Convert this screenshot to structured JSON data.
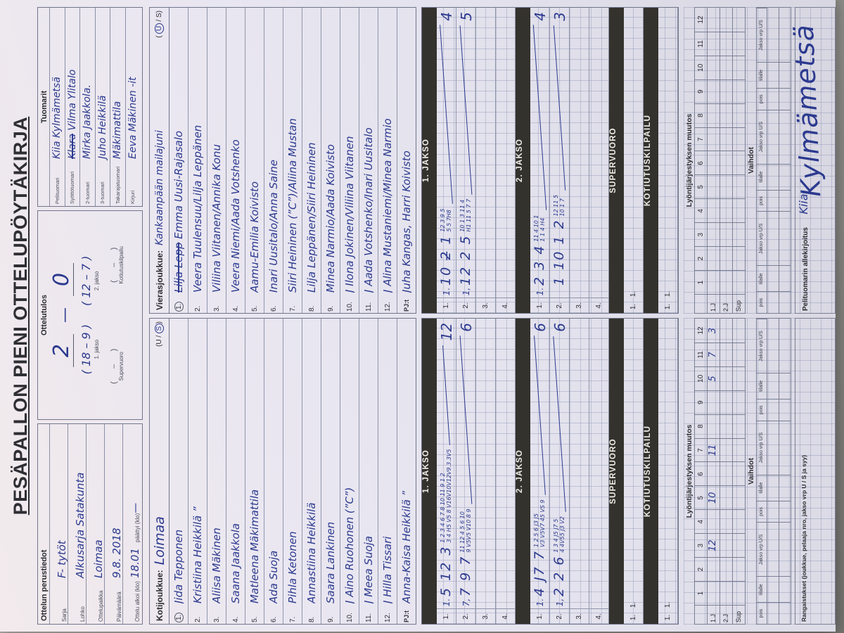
{
  "colors": {
    "table_bg": "#a8a6a2",
    "paper": "#e9e7f1",
    "ink": "#2c3a8f",
    "print": "#2b2b31",
    "bar_bg": "#34322d"
  },
  "title": "PESÄPALLON PIENI OTTELUPÖYTÄKIRJA",
  "header": {
    "perustiedot": {
      "label": "Ottelun perustiedot",
      "fields": [
        {
          "label": "Sarja",
          "value": "F- tytöt"
        },
        {
          "label": "Lohko",
          "value": "Alkusarja Satakunta"
        },
        {
          "label": "Ottelupaikka",
          "value": "Loimaa"
        },
        {
          "label": "Päivämäärä",
          "value": "9.8. 2018"
        },
        {
          "label": "Ottelu alkoi (klo)",
          "value": "18.01"
        },
        {
          "label": "päättyi (klo)",
          "value": "—"
        }
      ]
    },
    "tulos": {
      "label": "Ottelutulos",
      "score_home": "2",
      "dash": "—",
      "score_away": "0",
      "jakso1_value": "( 18 – 9 )",
      "jakso1_label": "1. jakso",
      "jakso2_value": "( 12 – 7 )",
      "jakso2_label": "2. jakso",
      "supervuoro_label": "Supervuoro",
      "kotiutus_label": "Kotiutuskilpailu",
      "blank": "(      –      )"
    },
    "tuomarit": {
      "label": "Tuomarit",
      "rows": [
        {
          "label": "Pelituomari",
          "value": "Kiia Kylmämetsä"
        },
        {
          "label": "Syöttötuomari",
          "struck": "Klara",
          "value": "Vilma Ylitalo"
        },
        {
          "label": "2-tuomari",
          "value": "Mirka Jaakkola."
        },
        {
          "label": "3-tuomari",
          "value": "Juho Heikkilä"
        },
        {
          "label": "Takarajatuomari",
          "value": "Mäkimattila"
        },
        {
          "label": "Kirjuri",
          "value": "Eeva Mäkinen -it"
        }
      ]
    }
  },
  "home": {
    "team_label": "Kotijoukkue:",
    "team_name": "Loimaa",
    "us_pre": "(U / ",
    "us_circled": "S",
    "us_post": ")",
    "players": [
      {
        "no": "1.",
        "name": "Jida Tepponen"
      },
      {
        "no": "2.",
        "name": "Kristiina Heikkilä ”"
      },
      {
        "no": "3.",
        "name": "Aliisa Mäkinen"
      },
      {
        "no": "4.",
        "name": "Saana Jaakkola"
      },
      {
        "no": "5.",
        "name": "Matleena Mäkimattila"
      },
      {
        "no": "6.",
        "name": "Ada Suoja"
      },
      {
        "no": "7.",
        "name": "Pihla Ketonen"
      },
      {
        "no": "8.",
        "name": "Annastiina Heikkilä"
      },
      {
        "no": "9.",
        "name": "Saara Lankinen"
      },
      {
        "no": "10.",
        "name": "J Aino Ruohonen (”C”)"
      },
      {
        "no": "11.",
        "name": "J Meea Suoja"
      },
      {
        "no": "12.",
        "name": "J Hilla Tissari"
      },
      {
        "no": "PJ:t",
        "name": "Anna-Kaisa Heikkilä ”"
      }
    ]
  },
  "away": {
    "team_label": "Vierasjoukkue:",
    "team_name": "Kankaanpään mailajuni",
    "us_pre": "( ",
    "us_circled": "U",
    "us_post": " / S)",
    "players": [
      {
        "no": "1.",
        "struck": "Lilja Lepp",
        "name": " Emma Uusi-Rajasalo"
      },
      {
        "no": "2.",
        "name": "Veera Tuulensuu/Lilja Leppänen"
      },
      {
        "no": "3.",
        "name": "Viliina Viitanen/Annika Konu"
      },
      {
        "no": "4.",
        "name": "Veera Niemi/Aada Votshenko"
      },
      {
        "no": "5.",
        "name": "Aamu-Emilia Koivisto"
      },
      {
        "no": "6.",
        "name": "Inari Uusitalo/Anna Saine"
      },
      {
        "no": "7.",
        "name": "Siiri Heininen (”C”)/Aliina Mustan"
      },
      {
        "no": "8.",
        "name": "Lilja Leppänen/Siiri Heininen"
      },
      {
        "no": "9.",
        "name": "Minea Narmio/Aada Koivisto"
      },
      {
        "no": "10.",
        "name": "J Ilona Jokinen/Viliina Viitanen"
      },
      {
        "no": "11.",
        "name": "J Aada Votshenko/Inari Uusitalo"
      },
      {
        "no": "12.",
        "name": "J Alina Mustaniemi/Minea Narmio"
      },
      {
        "no": "PJ:t",
        "name": "Juha Kangas, Harri Koivisto"
      }
    ]
  },
  "scoring": {
    "bars": {
      "j1": "1. JAKSO",
      "j2": "2. JAKSO",
      "sv": "SUPERVUORO",
      "kk": "KOTIUTUSKILPAILU"
    },
    "row_labels": [
      "1.",
      "2.",
      "3.",
      "4."
    ],
    "mini_a": "1.",
    "mini_b": "1.",
    "home": {
      "j1": [
        {
          "pre": "1.",
          "big": "5 12 3",
          "t": "1 2 3 4 6 7 8 10 11 9 1 2",
          "b": "3 4 H5 V5 8 V16V10V12V9.3.3V5",
          "tot": "12"
        },
        {
          "pre": "7,",
          "big": "7 9 7",
          "t": "11 12 4 5 6 10",
          "b": "9 V5V5 V10 8 9",
          "tot": "6"
        }
      ],
      "j2": [
        {
          "pre": "1.",
          "big": "4 J7 7",
          "t": "1 2 5 6 J3 J5",
          "b": "V3 V5V7 45 VS 9",
          "tot": "6"
        },
        {
          "pre": "1,",
          "big": "2 2 6",
          "t": "1 3 4 J5 J7 5",
          "b": "4 4V55 J3 V2",
          "tot": "6"
        }
      ]
    },
    "away": {
      "j1": [
        {
          "pre": "1.",
          "big": "10 2̶ 1",
          "t": "12 3 9 5",
          "b": "5 5 7H8",
          "tot": "4"
        },
        {
          "pre": "1,",
          "big": "12 2 5",
          "t": "10 1 3 11 4",
          "b": "H1 11 5 7 7",
          "tot": "5"
        }
      ],
      "j2": [
        {
          "pre": "1.",
          "big": "2 3 4",
          "t": "11 4 10 1",
          "b": "1 1 4 H4",
          "tot": "4"
        },
        {
          "pre": "",
          "big": "1 10 1 2",
          "t": "12 11 5",
          "b": "10 1 7",
          "tot": "3"
        }
      ]
    }
  },
  "bottom": {
    "lyonti": "Lyöntijärjestyksen muutos",
    "cols": [
      "1",
      "2",
      "3",
      "4",
      "5",
      "6",
      "7",
      "8",
      "9",
      "10",
      "11",
      "12"
    ],
    "rows": [
      "1.J",
      "2.J",
      "Sup"
    ],
    "home_1j": [
      "",
      "",
      "12",
      "",
      "10",
      "",
      "11",
      "",
      "",
      "5",
      "7",
      "3"
    ],
    "vaihdot": "Vaihdot",
    "vcols": [
      "pois",
      "tilalle",
      "Jakso vrp U/S"
    ],
    "rangaistukset": "Rangaistukset (joukkue, pelaaja nro, jakso vrp U / S ja syy)",
    "allekirjoitus": "Pelituomarin allekirjoitus",
    "sig_first": "Kiia",
    "sig_last": "Kylmämetsä"
  }
}
